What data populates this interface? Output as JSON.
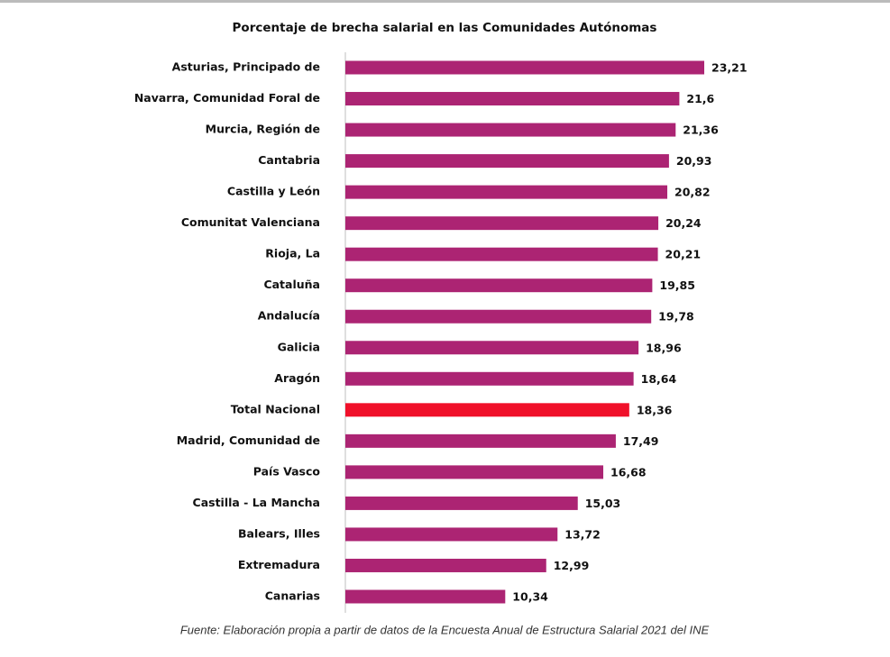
{
  "chart_data": {
    "type": "barh",
    "title": "Porcentaje de brecha salarial en las Comunidades Autónomas",
    "categories": [
      "Asturias, Principado de",
      "Navarra, Comunidad Foral de",
      "Murcia, Región de",
      "Cantabria",
      "Castilla y León",
      "Comunitat Valenciana",
      "Rioja, La",
      "Cataluña",
      "Andalucía",
      "Galicia",
      "Aragón",
      "Total Nacional",
      "Madrid, Comunidad de",
      "País Vasco",
      "Castilla - La Mancha",
      "Balears, Illes",
      "Extremadura",
      "Canarias"
    ],
    "values": [
      23.21,
      21.6,
      21.36,
      20.93,
      20.82,
      20.24,
      20.21,
      19.85,
      19.78,
      18.96,
      18.64,
      18.36,
      17.49,
      16.68,
      15.03,
      13.72,
      12.99,
      10.34
    ],
    "value_labels": [
      "23,21",
      "21,6",
      "21,36",
      "20,93",
      "20,82",
      "20,24",
      "20,21",
      "19,85",
      "19,78",
      "18,96",
      "18,64",
      "18,36",
      "17,49",
      "16,68",
      "15,03",
      "13,72",
      "12,99",
      "10,34"
    ],
    "colors": [
      "#ac2473",
      "#ac2473",
      "#ac2473",
      "#ac2473",
      "#ac2473",
      "#ac2473",
      "#ac2473",
      "#ac2473",
      "#ac2473",
      "#ac2473",
      "#ac2473",
      "#f0102a",
      "#ac2473",
      "#ac2473",
      "#ac2473",
      "#ac2473",
      "#ac2473",
      "#ac2473"
    ],
    "source": "Fuente: Elaboración propia a partir de datos de la Encuesta Anual de Estructura Salarial 2021 del INE"
  }
}
